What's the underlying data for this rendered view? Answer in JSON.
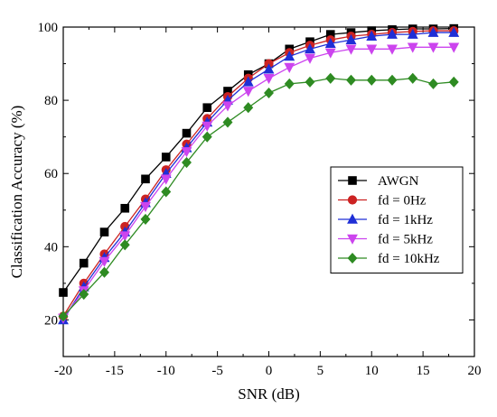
{
  "chart_data": {
    "type": "line",
    "xlabel": "SNR (dB)",
    "ylabel": "Classification Accuracy (%)",
    "xlim": [
      -20,
      20
    ],
    "ylim": [
      10,
      100
    ],
    "xticks": [
      -20,
      -15,
      -10,
      -5,
      0,
      5,
      10,
      15,
      20
    ],
    "xtick_labels": [
      "-20",
      "-15",
      "-10",
      "-5",
      "0",
      "5",
      "10",
      "15",
      "20"
    ],
    "yticks": [
      20,
      40,
      60,
      80,
      100
    ],
    "ytick_labels": [
      "20",
      "40",
      "60",
      "80",
      "100"
    ],
    "grid": false,
    "legend_position": "right",
    "x": [
      -20,
      -18,
      -16,
      -14,
      -12,
      -10,
      -8,
      -6,
      -4,
      -2,
      0,
      2,
      4,
      6,
      8,
      10,
      12,
      14,
      16,
      18
    ],
    "series": [
      {
        "name": "AWGN",
        "color": "#000000",
        "marker": "square",
        "values": [
          27.5,
          35.5,
          44,
          50.5,
          58.5,
          64.5,
          71,
          78,
          82.5,
          87,
          90,
          94,
          96,
          98,
          98.5,
          99,
          99.3,
          99.5,
          99.5,
          99.6
        ]
      },
      {
        "name": "fd = 0Hz",
        "color": "#cc2222",
        "marker": "circle",
        "values": [
          21,
          30,
          38,
          45.5,
          53,
          61,
          68,
          75,
          81,
          86,
          90,
          93,
          95,
          96.5,
          97.5,
          98,
          98.5,
          98.8,
          99,
          99
        ]
      },
      {
        "name": "fd = 1kHz",
        "color": "#1f2fd6",
        "marker": "triangle-up",
        "values": [
          20,
          29,
          37,
          44,
          52,
          60,
          67,
          74,
          80,
          85,
          88.5,
          92,
          94,
          95.5,
          96.5,
          97.5,
          98,
          98,
          98.5,
          98.5
        ]
      },
      {
        "name": "fd = 5kHz",
        "color": "#cc44ee",
        "marker": "triangle-down",
        "values": [
          20.5,
          28,
          36,
          43,
          51,
          58.5,
          66,
          73,
          78.5,
          82.5,
          86,
          89,
          91.5,
          93,
          94,
          94,
          94,
          94.5,
          94.5,
          94.5
        ]
      },
      {
        "name": "fd = 10kHz",
        "color": "#2e8b22",
        "marker": "diamond",
        "values": [
          21,
          27,
          33,
          40.5,
          47.5,
          55,
          63,
          70,
          74,
          78,
          82,
          84.5,
          85,
          86,
          85.5,
          85.5,
          85.5,
          86,
          84.5,
          85
        ]
      }
    ]
  }
}
